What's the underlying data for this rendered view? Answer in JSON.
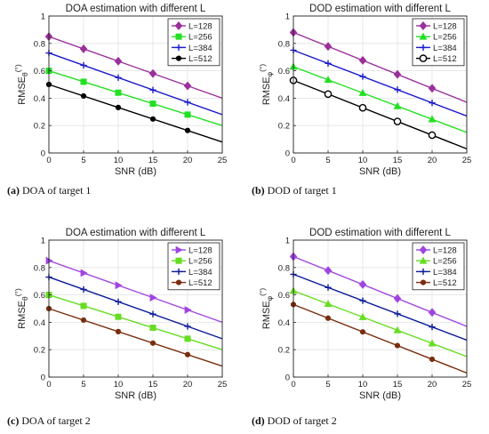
{
  "chart_data": [
    {
      "type": "line",
      "title": "DOA estimation with different L",
      "xlabel": "SNR (dB)",
      "ylabel": "RMSE",
      "ylabel_sub": "θ",
      "ylabel_sup": "(°)",
      "xlim": [
        0,
        25
      ],
      "ylim": [
        0,
        1
      ],
      "xticks": [
        0,
        5,
        10,
        15,
        20,
        25
      ],
      "yticks": [
        0,
        0.2,
        0.4,
        0.6,
        0.8,
        1
      ],
      "grid": true,
      "legend_position": "top-right",
      "marker_x": [
        0,
        5,
        10,
        15,
        20
      ],
      "series": [
        {
          "name": "L=128",
          "color": "#9b2f9b",
          "marker": "diamond",
          "x": [
            0,
            25
          ],
          "y": [
            0.85,
            0.4
          ]
        },
        {
          "name": "L=256",
          "color": "#22e022",
          "marker": "square",
          "x": [
            0,
            25
          ],
          "y": [
            0.6,
            0.2
          ]
        },
        {
          "name": "L=384",
          "color": "#1a1acc",
          "marker": "plus",
          "x": [
            0,
            25
          ],
          "y": [
            0.73,
            0.28
          ]
        },
        {
          "name": "L=512",
          "color": "#000000",
          "marker": "dot",
          "x": [
            0,
            25
          ],
          "y": [
            0.5,
            0.08
          ]
        }
      ],
      "caption_label": "(a)",
      "caption_text": "DOA of target 1"
    },
    {
      "type": "line",
      "title": "DOD estimation with different L",
      "xlabel": "SNR (dB)",
      "ylabel": "RMSE",
      "ylabel_sub": "φ",
      "ylabel_sup": "(°)",
      "xlim": [
        0,
        25
      ],
      "ylim": [
        0,
        1
      ],
      "xticks": [
        0,
        5,
        10,
        15,
        20,
        25
      ],
      "yticks": [
        0,
        0.2,
        0.4,
        0.6,
        0.8,
        1
      ],
      "grid": true,
      "legend_position": "top-right",
      "marker_x": [
        0,
        5,
        10,
        15,
        20
      ],
      "series": [
        {
          "name": "L=128",
          "color": "#9b2f9b",
          "marker": "diamond",
          "x": [
            0,
            25
          ],
          "y": [
            0.88,
            0.37
          ]
        },
        {
          "name": "L=256",
          "color": "#22e022",
          "marker": "triangle-up",
          "x": [
            0,
            25
          ],
          "y": [
            0.63,
            0.15
          ]
        },
        {
          "name": "L=384",
          "color": "#1a1acc",
          "marker": "plus",
          "x": [
            0,
            25
          ],
          "y": [
            0.75,
            0.27
          ]
        },
        {
          "name": "L=512",
          "color": "#000000",
          "marker": "circle",
          "x": [
            0,
            25
          ],
          "y": [
            0.53,
            0.03
          ]
        }
      ],
      "caption_label": "(b)",
      "caption_text": "DOD of target 1"
    },
    {
      "type": "line",
      "title": "DOA estimation with different L",
      "xlabel": "SNR (dB)",
      "ylabel": "RMSE",
      "ylabel_sub": "θ",
      "ylabel_sup": "(°)",
      "xlim": [
        0,
        25
      ],
      "ylim": [
        0,
        1
      ],
      "xticks": [
        0,
        5,
        10,
        15,
        20,
        25
      ],
      "yticks": [
        0,
        0.2,
        0.4,
        0.6,
        0.8,
        1
      ],
      "grid": true,
      "legend_position": "top-right",
      "marker_x": [
        0,
        5,
        10,
        15,
        20
      ],
      "series": [
        {
          "name": "L=128",
          "color": "#a044e0",
          "marker": "triangle-right",
          "x": [
            0,
            25
          ],
          "y": [
            0.85,
            0.4
          ]
        },
        {
          "name": "L=256",
          "color": "#66dd22",
          "marker": "square",
          "x": [
            0,
            25
          ],
          "y": [
            0.6,
            0.2
          ]
        },
        {
          "name": "L=384",
          "color": "#0a1a99",
          "marker": "plus",
          "x": [
            0,
            25
          ],
          "y": [
            0.73,
            0.28
          ]
        },
        {
          "name": "L=512",
          "color": "#7a2e0e",
          "marker": "dot",
          "x": [
            0,
            25
          ],
          "y": [
            0.5,
            0.08
          ]
        }
      ],
      "caption_label": "(c)",
      "caption_text": "DOA of target 2"
    },
    {
      "type": "line",
      "title": "DOD estimation with different L",
      "xlabel": "SNR (dB)",
      "ylabel": "RMSE",
      "ylabel_sub": "φ",
      "ylabel_sup": "(°)",
      "xlim": [
        0,
        25
      ],
      "ylim": [
        0,
        1
      ],
      "xticks": [
        0,
        5,
        10,
        15,
        20,
        25
      ],
      "yticks": [
        0,
        0.2,
        0.4,
        0.6,
        0.8,
        1
      ],
      "grid": true,
      "legend_position": "top-right",
      "marker_x": [
        0,
        5,
        10,
        15,
        20
      ],
      "series": [
        {
          "name": "L=128",
          "color": "#a044e0",
          "marker": "diamond",
          "x": [
            0,
            25
          ],
          "y": [
            0.88,
            0.37
          ]
        },
        {
          "name": "L=256",
          "color": "#66dd22",
          "marker": "triangle-up",
          "x": [
            0,
            25
          ],
          "y": [
            0.63,
            0.15
          ]
        },
        {
          "name": "L=384",
          "color": "#0a1a99",
          "marker": "plus",
          "x": [
            0,
            25
          ],
          "y": [
            0.75,
            0.27
          ]
        },
        {
          "name": "L=512",
          "color": "#7a2e0e",
          "marker": "dot",
          "x": [
            0,
            25
          ],
          "y": [
            0.53,
            0.03
          ]
        }
      ],
      "caption_label": "(d)",
      "caption_text": "DOD of target 2"
    }
  ]
}
